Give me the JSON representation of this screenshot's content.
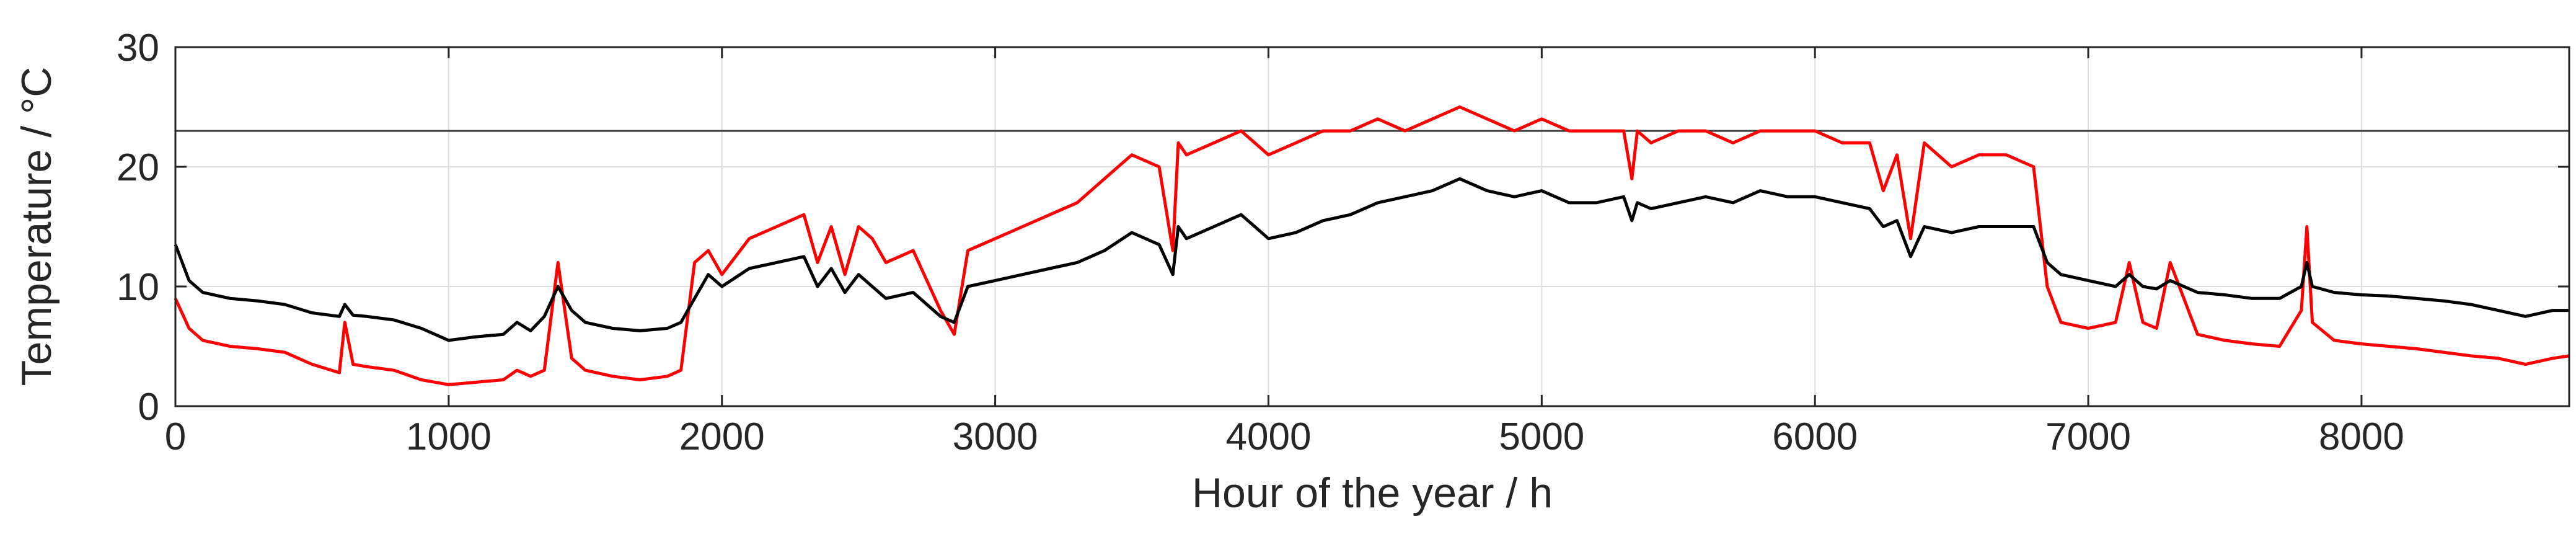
{
  "chart_data": {
    "type": "line",
    "title": "",
    "xlabel": "Hour of the year / h",
    "ylabel": "Temperature / °C",
    "xlim": [
      0,
      8760
    ],
    "ylim": [
      0,
      30
    ],
    "xticks": [
      0,
      1000,
      2000,
      3000,
      4000,
      5000,
      6000,
      7000,
      8000
    ],
    "yticks": [
      0,
      10,
      20,
      30
    ],
    "grid": true,
    "legend": "none",
    "reference_line": {
      "y": 23,
      "color": "#404040"
    },
    "series": [
      {
        "color": "#ff0000",
        "x": [
          0,
          50,
          100,
          200,
          300,
          400,
          500,
          600,
          620,
          650,
          700,
          800,
          900,
          1000,
          1100,
          1200,
          1250,
          1300,
          1350,
          1400,
          1450,
          1500,
          1600,
          1700,
          1800,
          1850,
          1900,
          1950,
          2000,
          2100,
          2200,
          2300,
          2350,
          2400,
          2450,
          2500,
          2550,
          2600,
          2700,
          2800,
          2850,
          2900,
          3000,
          3100,
          3200,
          3300,
          3400,
          3500,
          3600,
          3650,
          3670,
          3700,
          3800,
          3900,
          4000,
          4100,
          4200,
          4300,
          4400,
          4500,
          4600,
          4700,
          4800,
          4900,
          5000,
          5100,
          5200,
          5300,
          5330,
          5350,
          5400,
          5500,
          5600,
          5700,
          5800,
          5900,
          6000,
          6100,
          6200,
          6250,
          6300,
          6350,
          6400,
          6500,
          6600,
          6700,
          6800,
          6850,
          6900,
          7000,
          7100,
          7150,
          7200,
          7250,
          7300,
          7400,
          7500,
          7600,
          7700,
          7780,
          7800,
          7820,
          7900,
          8000,
          8100,
          8200,
          8300,
          8400,
          8500,
          8600,
          8700,
          8760
        ],
        "y": [
          9,
          6.5,
          5.5,
          5,
          4.8,
          4.5,
          3.5,
          2.8,
          7,
          3.5,
          3.3,
          3,
          2.2,
          1.8,
          2,
          2.2,
          3,
          2.5,
          3,
          12,
          4,
          3,
          2.5,
          2.2,
          2.5,
          3,
          12,
          13,
          11,
          14,
          15,
          16,
          12,
          15,
          11,
          15,
          14,
          12,
          13,
          8,
          6,
          13,
          14,
          15,
          16,
          17,
          19,
          21,
          20,
          13,
          22,
          21,
          22,
          23,
          21,
          22,
          23,
          23,
          24,
          23,
          24,
          25,
          24,
          23,
          24,
          23,
          23,
          23,
          19,
          23,
          22,
          23,
          23,
          22,
          23,
          23,
          23,
          22,
          22,
          18,
          21,
          14,
          22,
          20,
          21,
          21,
          20,
          10,
          7,
          6.5,
          7,
          12,
          7,
          6.5,
          12,
          6,
          5.5,
          5.2,
          5,
          8,
          15,
          7,
          5.5,
          5.2,
          5,
          4.8,
          4.5,
          4.2,
          4,
          3.5,
          4,
          4.2
        ]
      },
      {
        "color": "#000000",
        "x": [
          0,
          50,
          100,
          200,
          300,
          400,
          500,
          600,
          620,
          650,
          700,
          800,
          900,
          1000,
          1100,
          1200,
          1250,
          1300,
          1350,
          1400,
          1450,
          1500,
          1600,
          1700,
          1800,
          1850,
          1900,
          1950,
          2000,
          2100,
          2200,
          2300,
          2350,
          2400,
          2450,
          2500,
          2550,
          2600,
          2700,
          2800,
          2850,
          2900,
          3000,
          3100,
          3200,
          3300,
          3400,
          3500,
          3600,
          3650,
          3670,
          3700,
          3800,
          3900,
          4000,
          4100,
          4200,
          4300,
          4400,
          4500,
          4600,
          4700,
          4800,
          4900,
          5000,
          5100,
          5200,
          5300,
          5330,
          5350,
          5400,
          5500,
          5600,
          5700,
          5800,
          5900,
          6000,
          6100,
          6200,
          6250,
          6300,
          6350,
          6400,
          6500,
          6600,
          6700,
          6800,
          6850,
          6900,
          7000,
          7100,
          7150,
          7200,
          7250,
          7300,
          7400,
          7500,
          7600,
          7700,
          7780,
          7800,
          7820,
          7900,
          8000,
          8100,
          8200,
          8300,
          8400,
          8500,
          8600,
          8700,
          8760
        ],
        "y": [
          13.5,
          10.5,
          9.5,
          9,
          8.8,
          8.5,
          7.8,
          7.5,
          8.5,
          7.6,
          7.5,
          7.2,
          6.5,
          5.5,
          5.8,
          6,
          7,
          6.3,
          7.5,
          10,
          8,
          7,
          6.5,
          6.3,
          6.5,
          7,
          9,
          11,
          10,
          11.5,
          12,
          12.5,
          10,
          11.5,
          9.5,
          11,
          10,
          9,
          9.5,
          7.5,
          7,
          10,
          10.5,
          11,
          11.5,
          12,
          13,
          14.5,
          13.5,
          11,
          15,
          14,
          15,
          16,
          14,
          14.5,
          15.5,
          16,
          17,
          17.5,
          18,
          19,
          18,
          17.5,
          18,
          17,
          17,
          17.5,
          15.5,
          17,
          16.5,
          17,
          17.5,
          17,
          18,
          17.5,
          17.5,
          17,
          16.5,
          15,
          15.5,
          12.5,
          15,
          14.5,
          15,
          15,
          15,
          12,
          11,
          10.5,
          10,
          11,
          10,
          9.8,
          10.5,
          9.5,
          9.3,
          9,
          9,
          10,
          12,
          10,
          9.5,
          9.3,
          9.2,
          9,
          8.8,
          8.5,
          8,
          7.5,
          8,
          8
        ]
      }
    ]
  }
}
